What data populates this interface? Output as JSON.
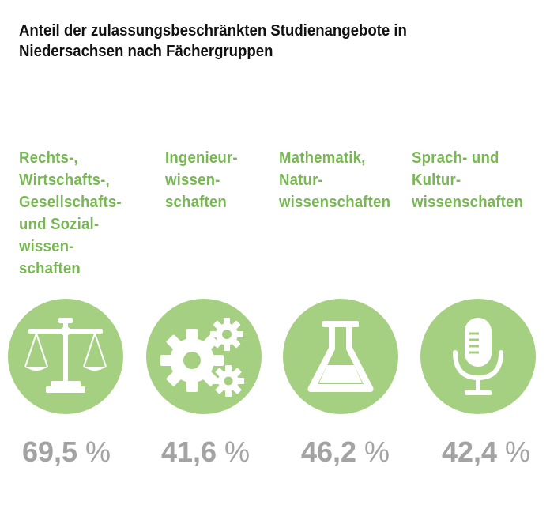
{
  "chart_data": {
    "type": "table",
    "title_lines": [
      "Anteil der zulassungsbeschränkten Studienangebote in",
      "Niedersachsen nach Fächergruppen"
    ],
    "unit": "%",
    "categories": [
      {
        "label_lines": [
          "Rechts-,",
          "Wirtschafts-,",
          "Gesellschafts-",
          "und Sozial-",
          "wissen-",
          "schaften"
        ],
        "value": 69.5,
        "value_label": "69,5",
        "icon": "scales-icon"
      },
      {
        "label_lines": [
          "Ingenieur-",
          "wissen-",
          "schaften"
        ],
        "value": 41.6,
        "value_label": "41,6",
        "icon": "gears-icon"
      },
      {
        "label_lines": [
          "Mathematik,",
          "Natur-",
          "wissenschaften"
        ],
        "value": 46.2,
        "value_label": "46,2",
        "icon": "flask-icon"
      },
      {
        "label_lines": [
          "Sprach- und",
          "Kultur-",
          "wissenschaften"
        ],
        "value": 42.4,
        "value_label": "42,4",
        "icon": "microphone-icon"
      }
    ]
  },
  "colors": {
    "category_text": "#77b852",
    "circle": "#a6d081",
    "icon": "#ffffff",
    "value_text": "#a3a3a3",
    "title_text": "#111111"
  }
}
